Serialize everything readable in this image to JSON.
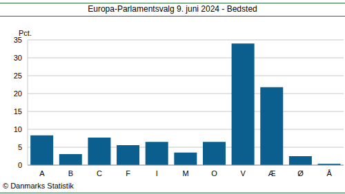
{
  "chart_data": {
    "type": "bar",
    "title": "Europa-Parlamentsvalg 9. juni 2024 - Bedsted",
    "y_label": "Pct.",
    "source": "© Danmarks Statistik",
    "categories": [
      "A",
      "B",
      "C",
      "F",
      "I",
      "M",
      "O",
      "V",
      "Æ",
      "Ø",
      "Å"
    ],
    "values": [
      8.3,
      3.1,
      7.7,
      5.6,
      6.5,
      3.5,
      6.5,
      34.0,
      21.8,
      2.5,
      0.4
    ],
    "color": "#0a5f8f",
    "ylim": [
      0,
      35
    ],
    "yticks": [
      0,
      5,
      10,
      15,
      20,
      25,
      30,
      35
    ],
    "grid": true
  }
}
